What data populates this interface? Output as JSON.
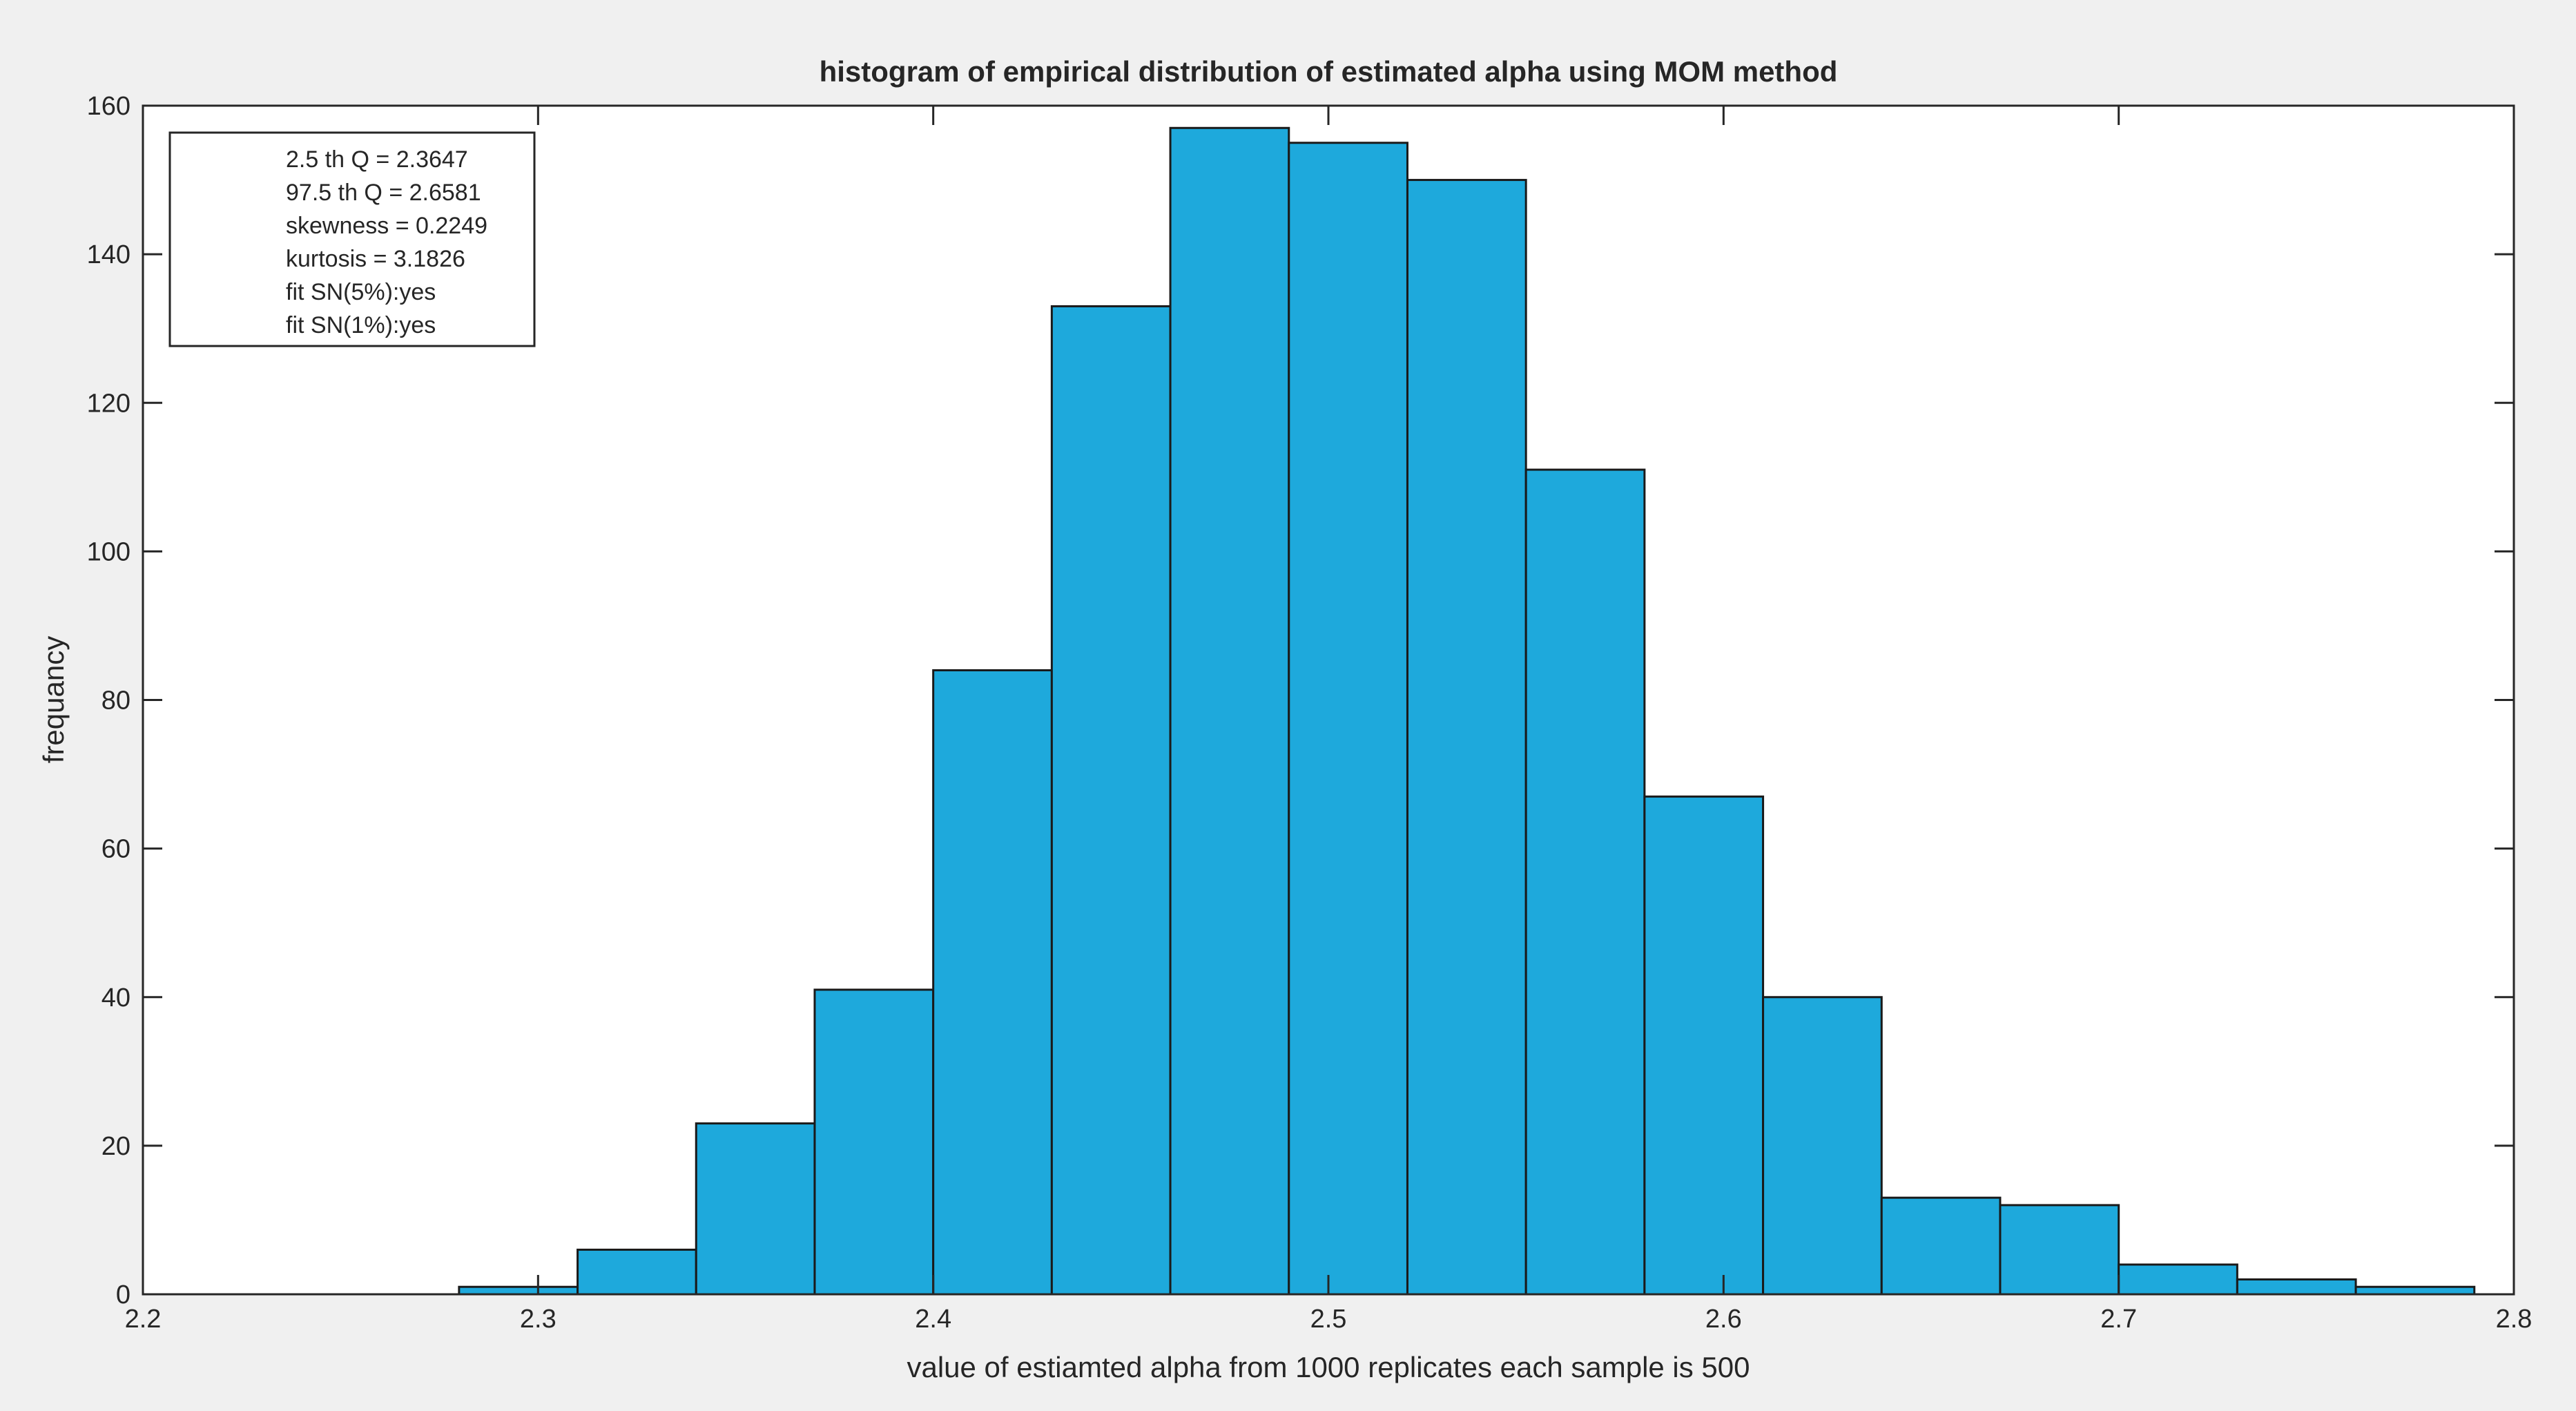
{
  "chart_data": {
    "type": "bar",
    "title": "histogram of empirical distribution of estimated alpha using MOM method",
    "xlabel": "value of estiamted alpha from 1000 replicates each sample is 500",
    "ylabel": "frequancy",
    "xlim": [
      2.2,
      2.8
    ],
    "ylim": [
      0,
      160
    ],
    "xticks": [
      "2.2",
      "2.3",
      "2.4",
      "2.5",
      "2.6",
      "2.7",
      "2.8"
    ],
    "yticks": [
      "0",
      "20",
      "40",
      "60",
      "80",
      "100",
      "120",
      "140",
      "160"
    ],
    "bin_edges": [
      2.28,
      2.31,
      2.34,
      2.37,
      2.4,
      2.43,
      2.46,
      2.49,
      2.52,
      2.55,
      2.58,
      2.61,
      2.64,
      2.67,
      2.7,
      2.73,
      2.76,
      2.79
    ],
    "values": [
      1,
      6,
      23,
      41,
      84,
      133,
      157,
      155,
      150,
      111,
      67,
      40,
      13,
      12,
      4,
      2,
      1
    ],
    "bar_color": "#1ea9dc",
    "grid": false,
    "legend": {
      "placement": "top-left",
      "lines": [
        "2.5 th Q = 2.3647",
        "97.5 th Q = 2.6581",
        "skewness =  0.2249",
        "kurtosis = 3.1826",
        "fit SN(5%):yes",
        "fit SN(1%):yes"
      ]
    }
  }
}
